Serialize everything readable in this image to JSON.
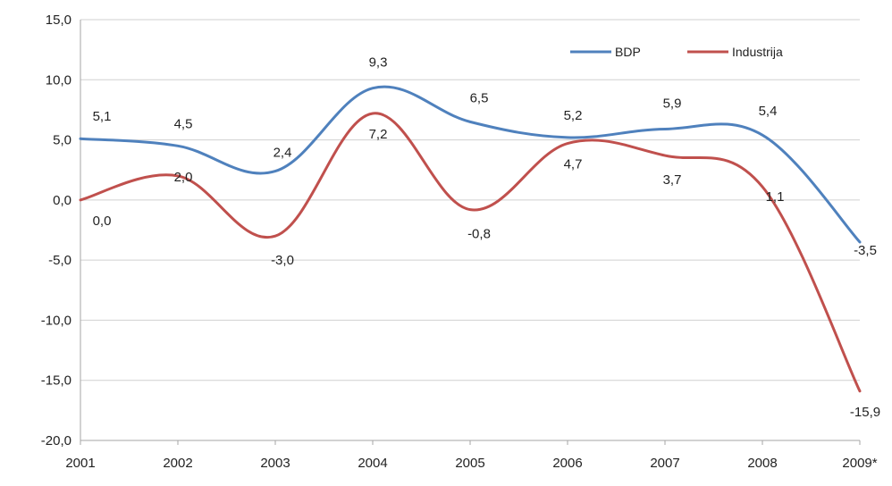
{
  "chart_data": {
    "type": "line",
    "categories": [
      "2001",
      "2002",
      "2003",
      "2004",
      "2005",
      "2006",
      "2007",
      "2008",
      "2009*"
    ],
    "series": [
      {
        "name": "BDP",
        "color": "#4f81bd",
        "values": [
          5.1,
          4.5,
          2.4,
          9.3,
          6.5,
          5.2,
          5.9,
          5.4,
          -3.5
        ]
      },
      {
        "name": "Industrija",
        "color": "#c0504d",
        "values": [
          0.0,
          2.0,
          -3.0,
          7.2,
          -0.8,
          4.7,
          3.7,
          1.1,
          -15.9
        ]
      }
    ],
    "ylim": [
      -20,
      15
    ],
    "yticks": [
      15,
      10,
      5,
      0,
      -5,
      -10,
      -15,
      -20
    ],
    "ytick_labels": [
      "15,0",
      "10,0",
      "5,0",
      "0,0",
      "-5,0",
      "-10,0",
      "-15,0",
      "-20,0"
    ],
    "data_labels": {
      "BDP": [
        "5,1",
        "4,5",
        "2,4",
        "9,3",
        "6,5",
        "5,2",
        "5,9",
        "5,4",
        "-3,5"
      ],
      "Industrija": [
        "0,0",
        "2,0",
        "-3,0",
        "7,2",
        "-0,8",
        "4,7",
        "3,7",
        "1,1",
        "-15,9"
      ]
    },
    "grid": true,
    "legend_position": "top-right"
  }
}
